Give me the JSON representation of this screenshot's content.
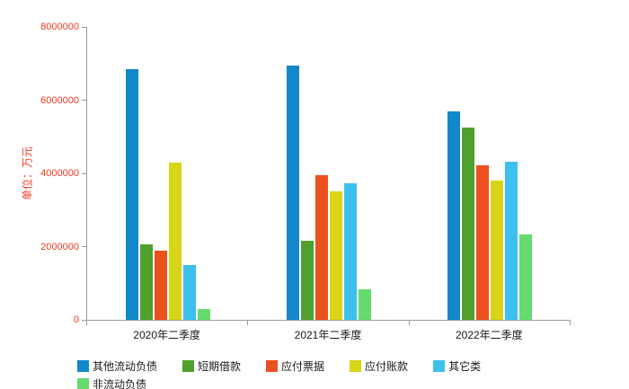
{
  "colors": {
    "tick_text": "#ef3b24",
    "axis_line": "#9b9b9b",
    "category_text": "#1a1a1a",
    "background": "#ffffff"
  },
  "chart_data": {
    "type": "bar",
    "ylabel": "单位：万元",
    "categories": [
      "2020年二季度",
      "2021年二季度",
      "2022年二季度"
    ],
    "series": [
      {
        "name": "其他流动负债",
        "color": "#1287c9",
        "values": [
          6850000,
          6950000,
          5700000
        ]
      },
      {
        "name": "短期借款",
        "color": "#50a02e",
        "values": [
          2060000,
          2160000,
          5250000
        ]
      },
      {
        "name": "应付票据",
        "color": "#eb511f",
        "values": [
          1890000,
          3950000,
          4220000
        ]
      },
      {
        "name": "应付账款",
        "color": "#d8d516",
        "values": [
          4300000,
          3500000,
          3810000
        ]
      },
      {
        "name": "其它类",
        "color": "#3cc1ef",
        "values": [
          1500000,
          3740000,
          4330000
        ]
      },
      {
        "name": "非流动负债",
        "color": "#65da6f",
        "values": [
          290000,
          840000,
          2330000
        ]
      }
    ],
    "ylim": [
      0,
      8000000
    ],
    "yticks": [
      0,
      2000000,
      4000000,
      6000000,
      8000000
    ],
    "grid": false,
    "legend_position": "bottom",
    "legend_row_size": 5
  }
}
